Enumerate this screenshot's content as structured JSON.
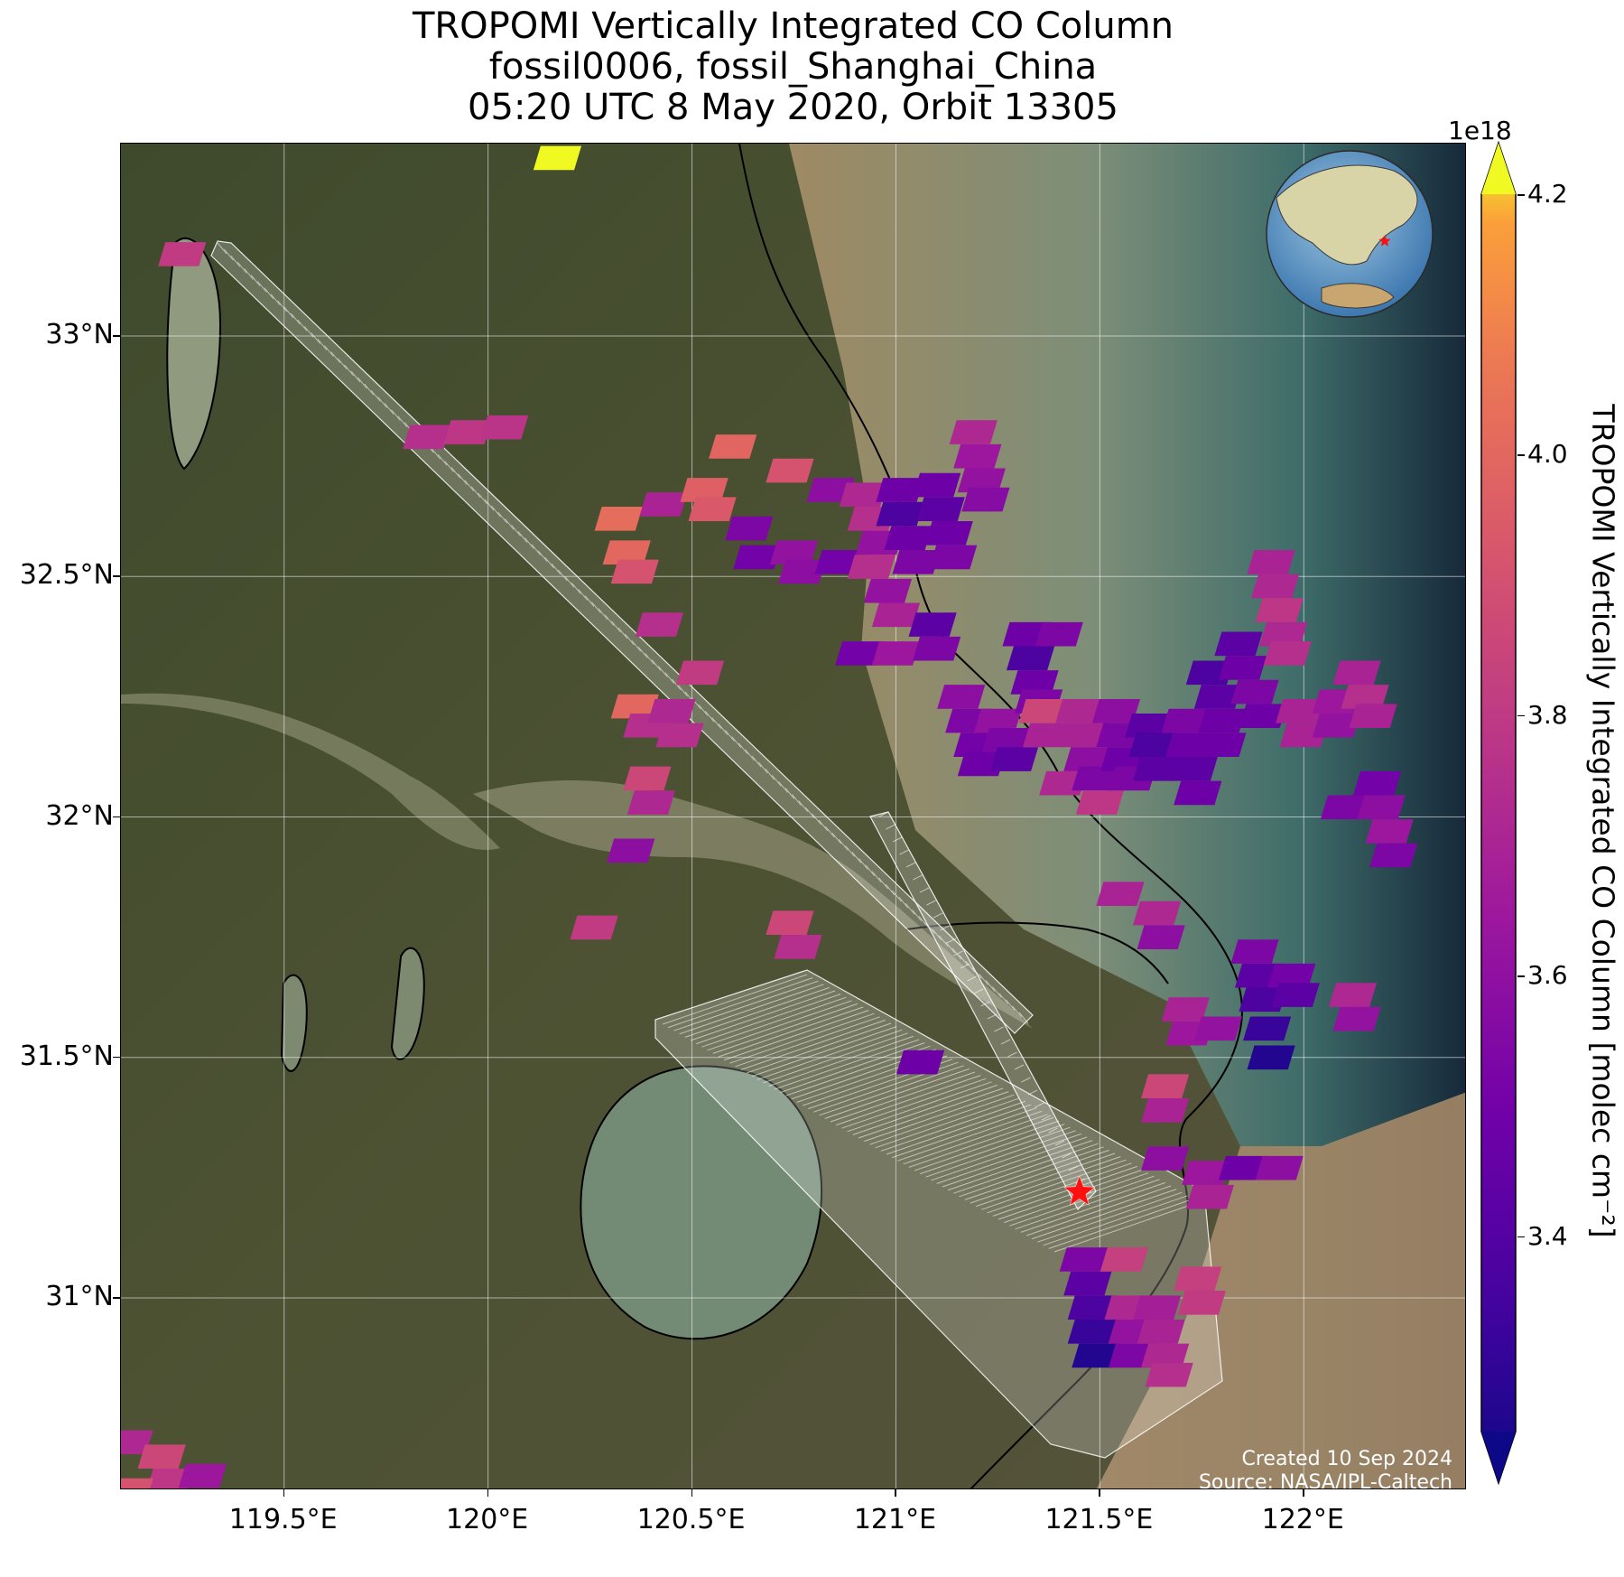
{
  "title": {
    "line1": "TROPOMI Vertically Integrated CO Column",
    "line2": "fossil0006, fossil_Shanghai_China",
    "line3": "05:20 UTC 8 May 2020, Orbit 13305"
  },
  "map": {
    "lon_range": [
      119.1,
      122.4
    ],
    "lat_range": [
      30.6,
      33.4
    ],
    "basemap": "satellite imagery (green farmland, brown Yangtze estuary, blue-green sea)",
    "lat_ticks": [
      {
        "value": 33.0,
        "label": "33°N"
      },
      {
        "value": 32.5,
        "label": "32.5°N"
      },
      {
        "value": 32.0,
        "label": "32°N"
      },
      {
        "value": 31.5,
        "label": "31.5°N"
      },
      {
        "value": 31.0,
        "label": "31°N"
      }
    ],
    "lon_ticks": [
      {
        "value": 119.5,
        "label": "119.5°E"
      },
      {
        "value": 120.0,
        "label": "120°E"
      },
      {
        "value": 120.5,
        "label": "120.5°E"
      },
      {
        "value": 121.0,
        "label": "121°E"
      },
      {
        "value": 121.5,
        "label": "121.5°E"
      },
      {
        "value": 122.0,
        "label": "122°E"
      }
    ],
    "gridlines": true,
    "target_marker": {
      "lon": 121.45,
      "lat": 31.22,
      "symbol": "red-star"
    },
    "inset": "globe with red star marking target location, top-right",
    "footer": {
      "created": "Created 10 Sep 2024",
      "source": "Source: NASA/JPL-Caltech"
    }
  },
  "colorbar": {
    "label": "TROPOMI Vertically Integrated CO Column [molec cm⁻²]",
    "exponent": "1e18",
    "colormap": "plasma",
    "range": [
      3.25,
      4.2
    ],
    "extend": "both",
    "ticks": [
      {
        "value": 4.2,
        "label": "4.2"
      },
      {
        "value": 4.0,
        "label": "4.0"
      },
      {
        "value": 3.8,
        "label": "3.8"
      },
      {
        "value": 3.6,
        "label": "3.6"
      },
      {
        "value": 3.4,
        "label": "3.4"
      }
    ]
  },
  "chart_data": {
    "type": "heatmap",
    "title": "TROPOMI Vertically Integrated CO Column",
    "unit": "1e18 molec cm⁻²",
    "cell_size_deg": [
      0.1,
      0.05
    ],
    "soundings": [
      {
        "lon": 120.17,
        "lat": 33.37,
        "value": 4.2
      },
      {
        "lon": 119.25,
        "lat": 33.17,
        "value": 3.8
      },
      {
        "lon": 119.85,
        "lat": 32.79,
        "value": 3.75
      },
      {
        "lon": 119.95,
        "lat": 32.8,
        "value": 3.78
      },
      {
        "lon": 120.04,
        "lat": 32.81,
        "value": 3.77
      },
      {
        "lon": 120.32,
        "lat": 32.62,
        "value": 4.0
      },
      {
        "lon": 120.34,
        "lat": 32.55,
        "value": 3.98
      },
      {
        "lon": 120.36,
        "lat": 32.51,
        "value": 3.9
      },
      {
        "lon": 120.43,
        "lat": 32.65,
        "value": 3.7
      },
      {
        "lon": 120.53,
        "lat": 32.68,
        "value": 3.95
      },
      {
        "lon": 120.55,
        "lat": 32.64,
        "value": 3.92
      },
      {
        "lon": 120.6,
        "lat": 32.77,
        "value": 3.97
      },
      {
        "lon": 120.64,
        "lat": 32.6,
        "value": 3.55
      },
      {
        "lon": 120.66,
        "lat": 32.54,
        "value": 3.52
      },
      {
        "lon": 120.74,
        "lat": 32.72,
        "value": 3.9
      },
      {
        "lon": 120.75,
        "lat": 32.55,
        "value": 3.62
      },
      {
        "lon": 120.77,
        "lat": 32.51,
        "value": 3.6
      },
      {
        "lon": 120.84,
        "lat": 32.68,
        "value": 3.6
      },
      {
        "lon": 120.86,
        "lat": 32.53,
        "value": 3.52
      },
      {
        "lon": 120.92,
        "lat": 32.67,
        "value": 3.72
      },
      {
        "lon": 120.94,
        "lat": 32.62,
        "value": 3.75
      },
      {
        "lon": 120.96,
        "lat": 32.57,
        "value": 3.62
      },
      {
        "lon": 120.94,
        "lat": 32.52,
        "value": 3.75
      },
      {
        "lon": 120.98,
        "lat": 32.47,
        "value": 3.62
      },
      {
        "lon": 121.0,
        "lat": 32.42,
        "value": 3.7
      },
      {
        "lon": 121.01,
        "lat": 32.68,
        "value": 3.5
      },
      {
        "lon": 121.01,
        "lat": 32.63,
        "value": 3.4
      },
      {
        "lon": 121.03,
        "lat": 32.58,
        "value": 3.5
      },
      {
        "lon": 121.05,
        "lat": 32.53,
        "value": 3.55
      },
      {
        "lon": 121.1,
        "lat": 32.69,
        "value": 3.5
      },
      {
        "lon": 121.11,
        "lat": 32.64,
        "value": 3.45
      },
      {
        "lon": 121.13,
        "lat": 32.59,
        "value": 3.5
      },
      {
        "lon": 121.14,
        "lat": 32.54,
        "value": 3.55
      },
      {
        "lon": 121.19,
        "lat": 32.8,
        "value": 3.72
      },
      {
        "lon": 121.2,
        "lat": 32.75,
        "value": 3.65
      },
      {
        "lon": 121.21,
        "lat": 32.7,
        "value": 3.62
      },
      {
        "lon": 121.22,
        "lat": 32.66,
        "value": 3.58
      },
      {
        "lon": 120.42,
        "lat": 32.4,
        "value": 3.75
      },
      {
        "lon": 120.91,
        "lat": 32.34,
        "value": 3.52
      },
      {
        "lon": 121.0,
        "lat": 32.34,
        "value": 3.65
      },
      {
        "lon": 121.09,
        "lat": 32.4,
        "value": 3.45
      },
      {
        "lon": 121.1,
        "lat": 32.35,
        "value": 3.55
      },
      {
        "lon": 121.16,
        "lat": 32.25,
        "value": 3.6
      },
      {
        "lon": 121.18,
        "lat": 32.2,
        "value": 3.55
      },
      {
        "lon": 121.2,
        "lat": 32.15,
        "value": 3.52
      },
      {
        "lon": 121.21,
        "lat": 32.11,
        "value": 3.5
      },
      {
        "lon": 121.25,
        "lat": 32.2,
        "value": 3.62
      },
      {
        "lon": 121.27,
        "lat": 32.16,
        "value": 3.55
      },
      {
        "lon": 121.29,
        "lat": 32.12,
        "value": 3.45
      },
      {
        "lon": 121.32,
        "lat": 32.38,
        "value": 3.5
      },
      {
        "lon": 121.33,
        "lat": 32.33,
        "value": 3.4
      },
      {
        "lon": 121.34,
        "lat": 32.28,
        "value": 3.5
      },
      {
        "lon": 121.35,
        "lat": 32.24,
        "value": 3.55
      },
      {
        "lon": 121.36,
        "lat": 32.22,
        "value": 3.85
      },
      {
        "lon": 121.37,
        "lat": 32.17,
        "value": 3.7
      },
      {
        "lon": 121.4,
        "lat": 32.38,
        "value": 3.55
      },
      {
        "lon": 121.41,
        "lat": 32.07,
        "value": 3.72
      },
      {
        "lon": 121.45,
        "lat": 32.22,
        "value": 3.72
      },
      {
        "lon": 121.46,
        "lat": 32.17,
        "value": 3.7
      },
      {
        "lon": 121.47,
        "lat": 32.12,
        "value": 3.6
      },
      {
        "lon": 121.49,
        "lat": 32.08,
        "value": 3.55
      },
      {
        "lon": 121.5,
        "lat": 32.03,
        "value": 3.78
      },
      {
        "lon": 121.54,
        "lat": 32.22,
        "value": 3.6
      },
      {
        "lon": 121.55,
        "lat": 32.17,
        "value": 3.55
      },
      {
        "lon": 121.56,
        "lat": 32.12,
        "value": 3.5
      },
      {
        "lon": 121.58,
        "lat": 32.08,
        "value": 3.55
      },
      {
        "lon": 121.62,
        "lat": 32.19,
        "value": 3.45
      },
      {
        "lon": 121.63,
        "lat": 32.15,
        "value": 3.4
      },
      {
        "lon": 121.64,
        "lat": 32.1,
        "value": 3.45
      },
      {
        "lon": 121.71,
        "lat": 32.2,
        "value": 3.55
      },
      {
        "lon": 121.72,
        "lat": 32.15,
        "value": 3.5
      },
      {
        "lon": 121.73,
        "lat": 32.1,
        "value": 3.45
      },
      {
        "lon": 121.74,
        "lat": 32.05,
        "value": 3.5
      },
      {
        "lon": 121.77,
        "lat": 32.3,
        "value": 3.4
      },
      {
        "lon": 121.79,
        "lat": 32.25,
        "value": 3.45
      },
      {
        "lon": 121.8,
        "lat": 32.2,
        "value": 3.5
      },
      {
        "lon": 121.8,
        "lat": 32.15,
        "value": 3.5
      },
      {
        "lon": 121.84,
        "lat": 32.36,
        "value": 3.45
      },
      {
        "lon": 121.85,
        "lat": 32.31,
        "value": 3.5
      },
      {
        "lon": 121.88,
        "lat": 32.26,
        "value": 3.55
      },
      {
        "lon": 121.9,
        "lat": 32.21,
        "value": 3.5
      },
      {
        "lon": 121.92,
        "lat": 32.53,
        "value": 3.7
      },
      {
        "lon": 121.93,
        "lat": 32.48,
        "value": 3.72
      },
      {
        "lon": 121.94,
        "lat": 32.43,
        "value": 3.78
      },
      {
        "lon": 121.95,
        "lat": 32.38,
        "value": 3.72
      },
      {
        "lon": 121.96,
        "lat": 32.34,
        "value": 3.75
      },
      {
        "lon": 121.99,
        "lat": 32.22,
        "value": 3.7
      },
      {
        "lon": 122.0,
        "lat": 32.17,
        "value": 3.7
      },
      {
        "lon": 122.08,
        "lat": 32.24,
        "value": 3.65
      },
      {
        "lon": 122.08,
        "lat": 32.19,
        "value": 3.62
      },
      {
        "lon": 122.1,
        "lat": 32.02,
        "value": 3.55
      },
      {
        "lon": 122.13,
        "lat": 32.3,
        "value": 3.7
      },
      {
        "lon": 122.15,
        "lat": 32.25,
        "value": 3.75
      },
      {
        "lon": 122.17,
        "lat": 32.21,
        "value": 3.7
      },
      {
        "lon": 122.18,
        "lat": 32.07,
        "value": 3.52
      },
      {
        "lon": 122.19,
        "lat": 32.02,
        "value": 3.6
      },
      {
        "lon": 122.21,
        "lat": 31.97,
        "value": 3.65
      },
      {
        "lon": 122.22,
        "lat": 31.92,
        "value": 3.55
      },
      {
        "lon": 120.36,
        "lat": 32.23,
        "value": 3.98
      },
      {
        "lon": 120.39,
        "lat": 32.19,
        "value": 3.75
      },
      {
        "lon": 120.45,
        "lat": 32.22,
        "value": 3.72
      },
      {
        "lon": 120.47,
        "lat": 32.17,
        "value": 3.75
      },
      {
        "lon": 120.52,
        "lat": 32.3,
        "value": 3.8
      },
      {
        "lon": 120.39,
        "lat": 32.08,
        "value": 3.85
      },
      {
        "lon": 120.4,
        "lat": 32.03,
        "value": 3.72
      },
      {
        "lon": 120.35,
        "lat": 31.93,
        "value": 3.6
      },
      {
        "lon": 120.26,
        "lat": 31.77,
        "value": 3.8
      },
      {
        "lon": 120.74,
        "lat": 31.78,
        "value": 3.85
      },
      {
        "lon": 120.76,
        "lat": 31.73,
        "value": 3.75
      },
      {
        "lon": 121.06,
        "lat": 31.49,
        "value": 3.5
      },
      {
        "lon": 121.55,
        "lat": 31.84,
        "value": 3.7
      },
      {
        "lon": 121.64,
        "lat": 31.8,
        "value": 3.72
      },
      {
        "lon": 121.65,
        "lat": 31.75,
        "value": 3.6
      },
      {
        "lon": 121.71,
        "lat": 31.6,
        "value": 3.7
      },
      {
        "lon": 121.72,
        "lat": 31.55,
        "value": 3.65
      },
      {
        "lon": 121.79,
        "lat": 31.56,
        "value": 3.62
      },
      {
        "lon": 121.88,
        "lat": 31.72,
        "value": 3.55
      },
      {
        "lon": 121.89,
        "lat": 31.67,
        "value": 3.45
      },
      {
        "lon": 121.9,
        "lat": 31.62,
        "value": 3.4
      },
      {
        "lon": 121.91,
        "lat": 31.56,
        "value": 3.35
      },
      {
        "lon": 121.92,
        "lat": 31.5,
        "value": 3.3
      },
      {
        "lon": 121.97,
        "lat": 31.67,
        "value": 3.52
      },
      {
        "lon": 121.98,
        "lat": 31.63,
        "value": 3.45
      },
      {
        "lon": 122.12,
        "lat": 31.63,
        "value": 3.72
      },
      {
        "lon": 122.13,
        "lat": 31.58,
        "value": 3.62
      },
      {
        "lon": 121.66,
        "lat": 31.44,
        "value": 3.85
      },
      {
        "lon": 121.66,
        "lat": 31.39,
        "value": 3.7
      },
      {
        "lon": 121.66,
        "lat": 31.29,
        "value": 3.6
      },
      {
        "lon": 121.76,
        "lat": 31.26,
        "value": 3.65
      },
      {
        "lon": 121.77,
        "lat": 31.21,
        "value": 3.7
      },
      {
        "lon": 121.85,
        "lat": 31.27,
        "value": 3.5
      },
      {
        "lon": 121.94,
        "lat": 31.27,
        "value": 3.6
      },
      {
        "lon": 121.46,
        "lat": 31.08,
        "value": 3.55
      },
      {
        "lon": 121.47,
        "lat": 31.03,
        "value": 3.45
      },
      {
        "lon": 121.48,
        "lat": 30.98,
        "value": 3.4
      },
      {
        "lon": 121.48,
        "lat": 30.93,
        "value": 3.35
      },
      {
        "lon": 121.49,
        "lat": 30.88,
        "value": 3.3
      },
      {
        "lon": 121.56,
        "lat": 31.08,
        "value": 3.82
      },
      {
        "lon": 121.57,
        "lat": 30.98,
        "value": 3.72
      },
      {
        "lon": 121.58,
        "lat": 30.93,
        "value": 3.62
      },
      {
        "lon": 121.58,
        "lat": 30.88,
        "value": 3.55
      },
      {
        "lon": 121.64,
        "lat": 30.98,
        "value": 3.68
      },
      {
        "lon": 121.65,
        "lat": 30.93,
        "value": 3.7
      },
      {
        "lon": 121.66,
        "lat": 30.88,
        "value": 3.72
      },
      {
        "lon": 121.67,
        "lat": 30.84,
        "value": 3.75
      },
      {
        "lon": 121.74,
        "lat": 31.04,
        "value": 3.82
      },
      {
        "lon": 121.75,
        "lat": 30.99,
        "value": 3.8
      },
      {
        "lon": 119.12,
        "lat": 30.7,
        "value": 3.72
      },
      {
        "lon": 119.2,
        "lat": 30.67,
        "value": 3.85
      },
      {
        "lon": 119.22,
        "lat": 30.62,
        "value": 3.78
      },
      {
        "lon": 119.3,
        "lat": 30.63,
        "value": 3.65
      },
      {
        "lon": 119.12,
        "lat": 30.6,
        "value": 3.9
      }
    ]
  }
}
